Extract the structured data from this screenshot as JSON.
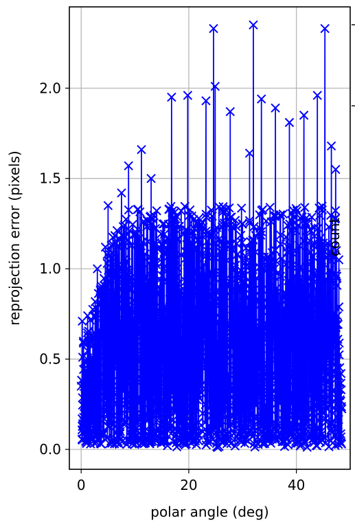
{
  "chart_data": {
    "type": "line",
    "xlabel": "polar angle (deg)",
    "ylabel": "reprojection error (pixels)",
    "side_label": "count",
    "xlim": [
      -2.2,
      50
    ],
    "ylim": [
      -0.11,
      2.45
    ],
    "xticks": [
      0,
      20,
      40
    ],
    "yticks": [
      0.0,
      0.5,
      1.0,
      1.5,
      2.0
    ],
    "xtick_labels": [
      "0",
      "20",
      "40"
    ],
    "ytick_labels": [
      "0.0",
      "0.5",
      "1.0",
      "1.5",
      "2.0"
    ],
    "grid": true,
    "marker": "x",
    "series": [
      {
        "color": "#0000ff",
        "x_range": [
          0,
          48.5
        ],
        "n_points": 1600,
        "peaks": [
          {
            "x": 0.2,
            "y": 0.71
          },
          {
            "x": 1.2,
            "y": 0.74
          },
          {
            "x": 3.0,
            "y": 1.0
          },
          {
            "x": 4.5,
            "y": 1.12
          },
          {
            "x": 5.0,
            "y": 1.35
          },
          {
            "x": 7.5,
            "y": 1.42
          },
          {
            "x": 8.8,
            "y": 1.57
          },
          {
            "x": 11.2,
            "y": 1.66
          },
          {
            "x": 13.0,
            "y": 1.5
          },
          {
            "x": 16.8,
            "y": 1.95
          },
          {
            "x": 19.8,
            "y": 1.96
          },
          {
            "x": 23.2,
            "y": 1.93
          },
          {
            "x": 24.6,
            "y": 2.33
          },
          {
            "x": 24.9,
            "y": 2.01
          },
          {
            "x": 27.7,
            "y": 1.87
          },
          {
            "x": 31.3,
            "y": 1.64
          },
          {
            "x": 32.0,
            "y": 2.35
          },
          {
            "x": 33.5,
            "y": 1.94
          },
          {
            "x": 36.1,
            "y": 1.89
          },
          {
            "x": 38.7,
            "y": 1.81
          },
          {
            "x": 41.4,
            "y": 1.85
          },
          {
            "x": 43.9,
            "y": 1.96
          },
          {
            "x": 45.3,
            "y": 2.33
          },
          {
            "x": 46.5,
            "y": 1.68
          },
          {
            "x": 47.3,
            "y": 1.55
          },
          {
            "x": 47.9,
            "y": 1.05
          },
          {
            "x": 48.3,
            "y": 0.42
          }
        ]
      }
    ]
  }
}
